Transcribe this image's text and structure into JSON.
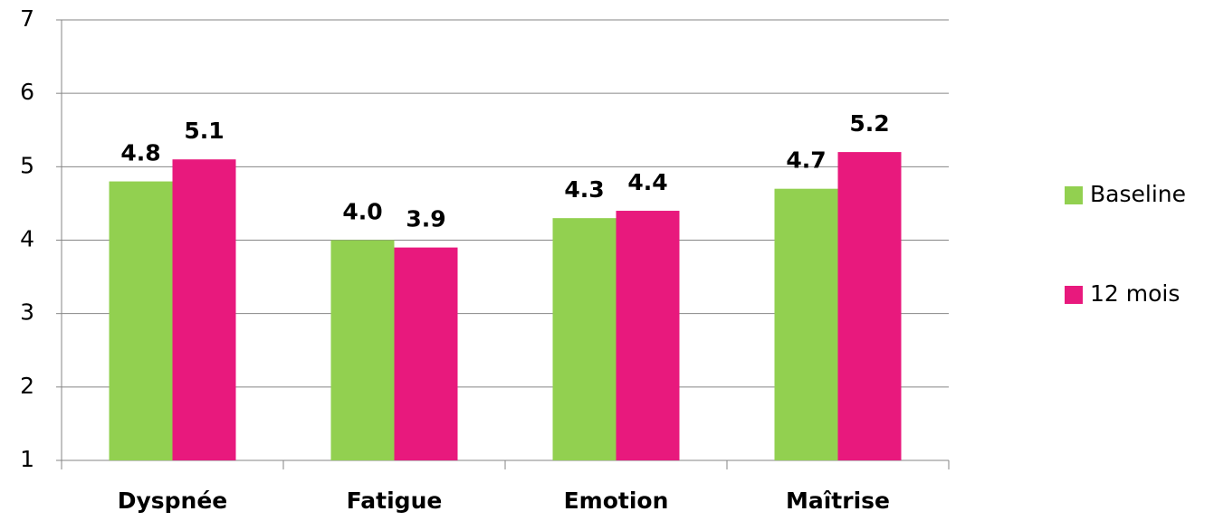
{
  "chart_data": {
    "type": "bar",
    "categories": [
      "Dyspnée",
      "Fatigue",
      "Emotion",
      "Maîtrise"
    ],
    "series": [
      {
        "name": "Baseline",
        "color": "#92d050",
        "values": [
          4.8,
          4.0,
          4.3,
          4.7
        ],
        "value_labels": [
          "4.8",
          "4.0",
          "4.3",
          "4.7"
        ]
      },
      {
        "name": "12 mois",
        "color": "#e8197d",
        "values": [
          5.1,
          3.9,
          4.4,
          5.2
        ],
        "value_labels": [
          "5.1",
          "3.9",
          "4.4",
          "5.2"
        ]
      }
    ],
    "ylim": [
      1,
      7
    ],
    "yticks": [
      1,
      2,
      3,
      4,
      5,
      6,
      7
    ],
    "grid": true,
    "legend": "right"
  }
}
